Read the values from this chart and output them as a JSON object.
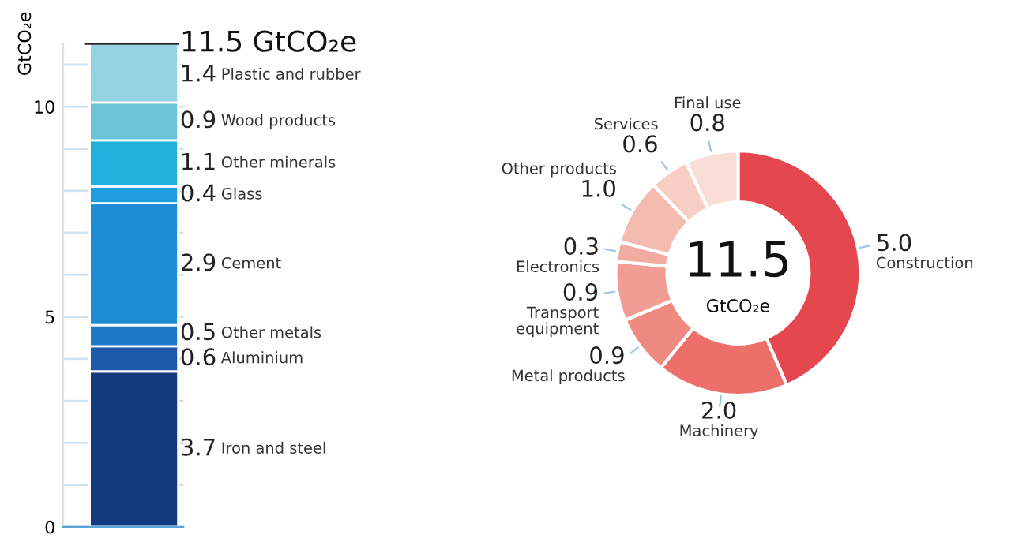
{
  "chart_data": [
    {
      "type": "bar",
      "stacked": true,
      "categories": [
        null
      ],
      "ylabel": "GtCO₂e",
      "ylim": [
        0,
        11.5
      ],
      "yticks": [
        0,
        {
          "value": 1,
          "label": null
        },
        {
          "value": 2,
          "label": null
        },
        {
          "value": 3,
          "label": null
        },
        {
          "value": 4,
          "label": null
        },
        5,
        {
          "value": 6,
          "label": null
        },
        {
          "value": 7,
          "label": null
        },
        {
          "value": 8,
          "label": null
        },
        {
          "value": 9,
          "label": null
        },
        10,
        {
          "value": 11,
          "label": null
        }
      ],
      "grid": "y",
      "tick_labels": "y",
      "data_labels": true,
      "totals": [
        "11.5 GtCO₂e"
      ],
      "series": [
        {
          "name": "Iron and steel",
          "color": "#133a7e",
          "values": [
            3.7
          ]
        },
        {
          "name": "Aluminium",
          "color": "#1a5aa8",
          "values": [
            0.6
          ]
        },
        {
          "name": "Other metals",
          "color": "#1e7ac4",
          "values": [
            0.5
          ]
        },
        {
          "name": "Cement",
          "color": "#1f8dd6",
          "values": [
            2.9
          ]
        },
        {
          "name": "Glass",
          "color": "#1e9de0",
          "values": [
            0.4
          ]
        },
        {
          "name": "Other minerals",
          "color": "#22afd9",
          "values": [
            1.1
          ]
        },
        {
          "name": "Wood products",
          "color": "#6bc3d6",
          "values": [
            0.9
          ]
        },
        {
          "name": "Plastic and rubber",
          "color": "#93d3e2",
          "values": [
            1.4
          ]
        }
      ]
    },
    {
      "type": "donut",
      "data_labels": true,
      "categories": [
        "Construction",
        "Machinery",
        "Metal products",
        "Transport\nequipment",
        "Electronics",
        "Other products",
        "Services",
        "Final use"
      ],
      "values": [
        5.0,
        2.0,
        0.9,
        0.9,
        0.3,
        1.0,
        0.6,
        0.8
      ],
      "value_labels": [
        "5.0",
        "2.0",
        "0.9",
        "0.9",
        "0.3",
        "1.0",
        "0.6",
        "0.8"
      ],
      "colors": [
        "#e5474f",
        "#ec6f6a",
        "#ef8a80",
        "#f09d93",
        "#f2aba0",
        "#f4bbb0",
        "#f7cdc4",
        "#fadcd6"
      ],
      "annotations": [
        "11.5",
        "GtCO₂e"
      ]
    }
  ]
}
